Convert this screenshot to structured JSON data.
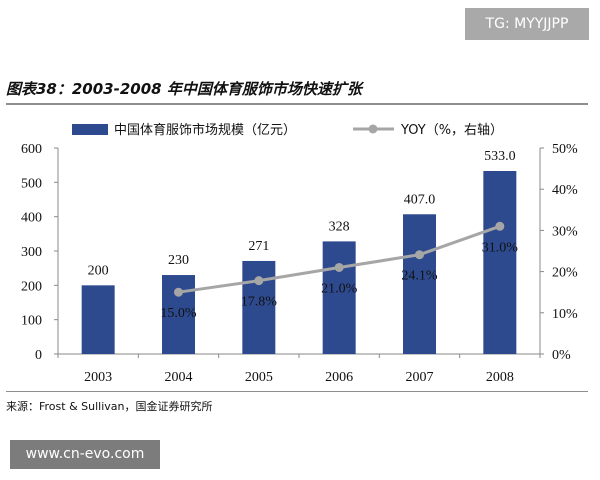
{
  "page": {
    "tag": "TG: MYYJJPP",
    "figure_title": "图表38：2003-2008 年中国体育服饰市场快速扩张",
    "source": "来源：Frost & Sullivan，国金证券研究所",
    "watermark": "www.cn-evo.com"
  },
  "chart_data": {
    "type": "bar",
    "categories": [
      "2003",
      "2004",
      "2005",
      "2006",
      "2007",
      "2008"
    ],
    "series": [
      {
        "name": "中国体育服饰市场规模（亿元）",
        "type": "bar",
        "axis": "left",
        "color": "#2e4a8f",
        "values": [
          200,
          230,
          271,
          328,
          407.0,
          533.0
        ],
        "labels": [
          "200",
          "230",
          "271",
          "328",
          "407.0",
          "533.0"
        ]
      },
      {
        "name": "YOY（%，右轴）",
        "type": "line",
        "axis": "right",
        "color": "#a6a6a6",
        "values": [
          null,
          15.0,
          17.8,
          21.0,
          24.1,
          31.0
        ],
        "labels": [
          "",
          "15.0%",
          "17.8%",
          "21.0%",
          "24.1%",
          "31.0%"
        ]
      }
    ],
    "y_left": {
      "ylim": [
        0,
        600
      ],
      "ticks": [
        0,
        100,
        200,
        300,
        400,
        500,
        600
      ],
      "tick_labels": [
        "0",
        "100",
        "200",
        "300",
        "400",
        "500",
        "600"
      ]
    },
    "y_right": {
      "ylim": [
        0,
        50
      ],
      "ticks": [
        0,
        10,
        20,
        30,
        40,
        50
      ],
      "tick_labels": [
        "0%",
        "10%",
        "20%",
        "30%",
        "40%",
        "50%"
      ]
    },
    "grid": false,
    "legend_position": "top"
  }
}
